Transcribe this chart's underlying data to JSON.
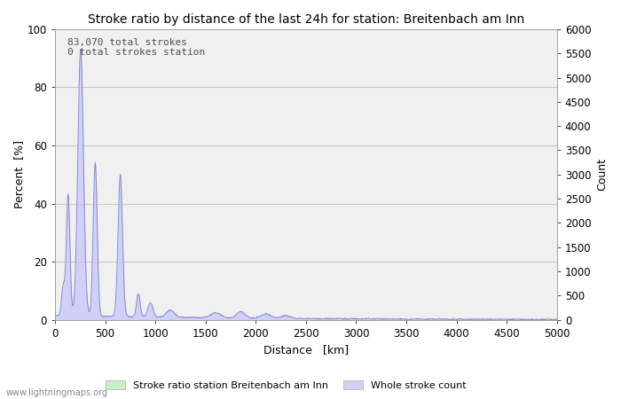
{
  "title": "Stroke ratio by distance of the last 24h for station: Breitenbach am Inn",
  "xlabel": "Distance   [km]",
  "ylabel_left": "Percent  [%]",
  "ylabel_right": "Count",
  "annotation_line1": "83,070 total strokes",
  "annotation_line2": "0 total strokes station",
  "xlim": [
    0,
    5000
  ],
  "ylim_left": [
    0,
    100
  ],
  "ylim_right": [
    0,
    6000
  ],
  "xticks": [
    0,
    500,
    1000,
    1500,
    2000,
    2500,
    3000,
    3500,
    4000,
    4500,
    5000
  ],
  "yticks_left": [
    0,
    20,
    40,
    60,
    80,
    100
  ],
  "yticks_right": [
    0,
    500,
    1000,
    1500,
    2000,
    2500,
    3000,
    3500,
    4000,
    4500,
    5000,
    5500,
    6000
  ],
  "fill_color_whole": "#d0d0f8",
  "line_color_whole": "#8888cc",
  "fill_color_station": "#c8f0c8",
  "line_color_station": "#80c080",
  "background_color": "#ffffff",
  "plot_bg_color": "#f0f0f0",
  "grid_color": "#c8c8c8",
  "watermark": "www.lightningmaps.org",
  "legend_label_station": "Stroke ratio station Breitenbach am Inn",
  "legend_label_whole": "Whole stroke count",
  "title_fontsize": 10,
  "axis_fontsize": 9,
  "tick_fontsize": 8.5,
  "annotation_fontsize": 8
}
